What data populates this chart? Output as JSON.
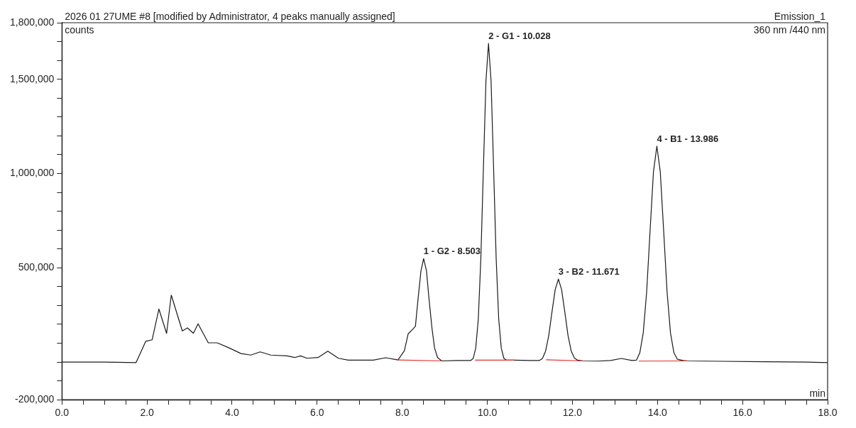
{
  "chart_data": {
    "type": "line",
    "title": "2026 01 27UME #8 [modified by Administrator, 4 peaks manually assigned]",
    "xlabel": "min",
    "ylabel": "counts",
    "annotations": [
      "Emission_1",
      "360 nm /440 nm",
      {
        "text": "1 - G2 - 8.503",
        "x": 8.503,
        "y": 549000
      },
      {
        "text": "2 - G1 - 10.028",
        "x": 10.028,
        "y": 1690000
      },
      {
        "text": "3 - B2 - 11.671",
        "x": 11.671,
        "y": 440000
      },
      {
        "text": "4 - B1 - 13.986",
        "x": 13.986,
        "y": 1145000
      }
    ],
    "series": [
      {
        "type": "line",
        "color": "#1a1a1a",
        "x": [
          0,
          1.0,
          1.74,
          1.85,
          1.97,
          2.12,
          2.28,
          2.46,
          2.57,
          2.83,
          2.95,
          3.09,
          3.2,
          3.44,
          3.65,
          3.91,
          4.21,
          4.44,
          4.66,
          4.91,
          5.29,
          5.47,
          5.61,
          5.76,
          6.02,
          6.25,
          6.5,
          6.73,
          7.32,
          7.61,
          7.9,
          8.05,
          8.14,
          8.25,
          8.31,
          8.37,
          8.44,
          8.503,
          8.57,
          8.63,
          8.7,
          8.76,
          8.83,
          8.93,
          9.3,
          9.608,
          9.668,
          9.728,
          9.788,
          9.848,
          9.908,
          9.968,
          10.028,
          10.088,
          10.148,
          10.208,
          10.268,
          10.328,
          10.388,
          10.45,
          10.63,
          11.0,
          11.221,
          11.296,
          11.371,
          11.446,
          11.521,
          11.596,
          11.671,
          11.746,
          11.821,
          11.896,
          11.971,
          12.046,
          12.12,
          12.26,
          12.6,
          12.9,
          13.15,
          13.4,
          13.506,
          13.586,
          13.666,
          13.746,
          13.826,
          13.906,
          13.986,
          14.066,
          14.146,
          14.226,
          14.306,
          14.386,
          14.466,
          14.6,
          14.72,
          15.5,
          16.5,
          17.5,
          18.0
        ],
        "values": [
          0,
          0,
          -3000,
          50000,
          110000,
          118000,
          281000,
          152000,
          355000,
          165000,
          181000,
          153000,
          203000,
          102000,
          102000,
          77000,
          45000,
          37000,
          54000,
          37000,
          33000,
          24000,
          33000,
          20000,
          24000,
          58000,
          20000,
          10000,
          10000,
          23000,
          11000,
          60000,
          150000,
          175000,
          190000,
          330000,
          484000,
          549000,
          484000,
          333000,
          178000,
          74000,
          24000,
          6000,
          8000,
          8000,
          19000,
          74000,
          228000,
          549000,
          1026000,
          1491000,
          1690000,
          1491000,
          1026000,
          549000,
          228000,
          74000,
          20000,
          10000,
          10000,
          8000,
          8000,
          19000,
          59000,
          143000,
          267000,
          385000,
          440000,
          385000,
          267000,
          143000,
          59000,
          22000,
          10000,
          6000,
          5000,
          8000,
          19000,
          8000,
          10000,
          50000,
          155000,
          372000,
          695000,
          1010000,
          1145000,
          1010000,
          695000,
          372000,
          155000,
          50000,
          15000,
          8000,
          6000,
          4000,
          2000,
          0,
          -3000
        ]
      },
      {
        "type": "line",
        "color": "#e03030",
        "x": [
          7.9,
          8.93,
          9.3,
          9.71,
          10.63,
          11.0,
          11.38,
          12.26,
          12.9,
          13.56,
          14.72
        ],
        "values": [
          11000,
          6000,
          null,
          10000,
          10000,
          null,
          12000,
          6000,
          null,
          5000,
          6000
        ]
      }
    ],
    "xlim": [
      0,
      18
    ],
    "xticks": [
      {
        "value": 0,
        "label": "0.0"
      },
      {
        "value": 0.5,
        "label": null
      },
      {
        "value": 1,
        "label": null
      },
      {
        "value": 1.5,
        "label": null
      },
      {
        "value": 2,
        "label": "2.0"
      },
      {
        "value": 2.5,
        "label": null
      },
      {
        "value": 3,
        "label": null
      },
      {
        "value": 3.5,
        "label": null
      },
      {
        "value": 4,
        "label": "4.0"
      },
      {
        "value": 4.5,
        "label": null
      },
      {
        "value": 5,
        "label": null
      },
      {
        "value": 5.5,
        "label": null
      },
      {
        "value": 6,
        "label": "6.0"
      },
      {
        "value": 6.5,
        "label": null
      },
      {
        "value": 7,
        "label": null
      },
      {
        "value": 7.5,
        "label": null
      },
      {
        "value": 8,
        "label": "8.0"
      },
      {
        "value": 8.5,
        "label": null
      },
      {
        "value": 9,
        "label": null
      },
      {
        "value": 9.5,
        "label": null
      },
      {
        "value": 10,
        "label": "10.0"
      },
      {
        "value": 10.5,
        "label": null
      },
      {
        "value": 11,
        "label": null
      },
      {
        "value": 11.5,
        "label": null
      },
      {
        "value": 12,
        "label": "12.0"
      },
      {
        "value": 12.5,
        "label": null
      },
      {
        "value": 13,
        "label": null
      },
      {
        "value": 13.5,
        "label": null
      },
      {
        "value": 14,
        "label": "14.0"
      },
      {
        "value": 14.5,
        "label": null
      },
      {
        "value": 15,
        "label": null
      },
      {
        "value": 15.5,
        "label": null
      },
      {
        "value": 16,
        "label": "16.0"
      },
      {
        "value": 16.5,
        "label": null
      },
      {
        "value": 17,
        "label": null
      },
      {
        "value": 17.5,
        "label": null
      },
      {
        "value": 18,
        "label": "18.0"
      }
    ],
    "ylim": [
      -200000,
      1800000
    ],
    "yticks": [
      {
        "value": -200000,
        "label": "-200,000"
      },
      {
        "value": -100000,
        "label": null
      },
      {
        "value": 0,
        "label": null
      },
      {
        "value": 100000,
        "label": null
      },
      {
        "value": 200000,
        "label": null
      },
      {
        "value": 300000,
        "label": null
      },
      {
        "value": 400000,
        "label": null
      },
      {
        "value": 500000,
        "label": "500,000"
      },
      {
        "value": 600000,
        "label": null
      },
      {
        "value": 700000,
        "label": null
      },
      {
        "value": 800000,
        "label": null
      },
      {
        "value": 900000,
        "label": null
      },
      {
        "value": 1000000,
        "label": "1,000,000"
      },
      {
        "value": 1100000,
        "label": null
      },
      {
        "value": 1200000,
        "label": null
      },
      {
        "value": 1300000,
        "label": null
      },
      {
        "value": 1400000,
        "label": null
      },
      {
        "value": 1500000,
        "label": "1,500,000"
      },
      {
        "value": 1600000,
        "label": null
      },
      {
        "value": 1700000,
        "label": null
      },
      {
        "value": 1800000,
        "label": "1,800,000"
      }
    ],
    "marker": "none",
    "line_style": "solid"
  }
}
